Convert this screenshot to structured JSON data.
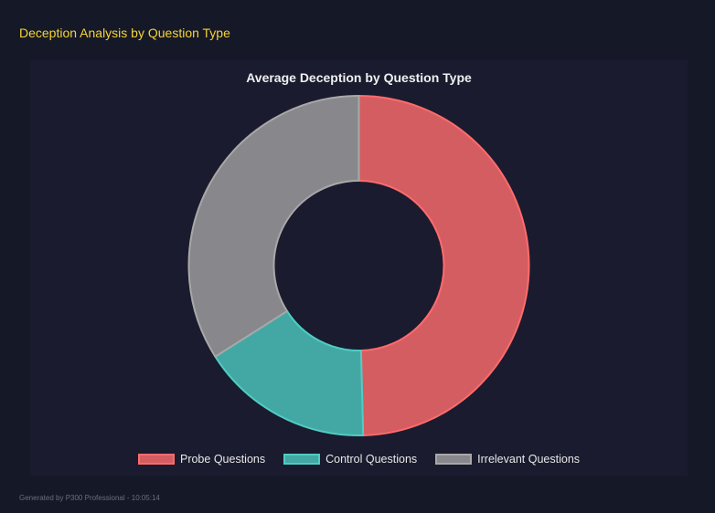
{
  "header": {
    "title": "Deception Analysis by Question Type"
  },
  "footer": {
    "text": "Generated by P300 Professional - 10:05:14"
  },
  "chart_data": {
    "type": "pie",
    "donut": true,
    "title": "Average Deception by Question Type",
    "categories": [
      "Probe Questions",
      "Control Questions",
      "Irrelevant Questions"
    ],
    "values": [
      49.6,
      16.4,
      34.0
    ],
    "colors": [
      "#d45d62",
      "#43a8a3",
      "#88878c"
    ],
    "border_colors": [
      "#ff6b6b",
      "#4ecdc4",
      "#a8a8a8"
    ],
    "legend_position": "bottom"
  }
}
